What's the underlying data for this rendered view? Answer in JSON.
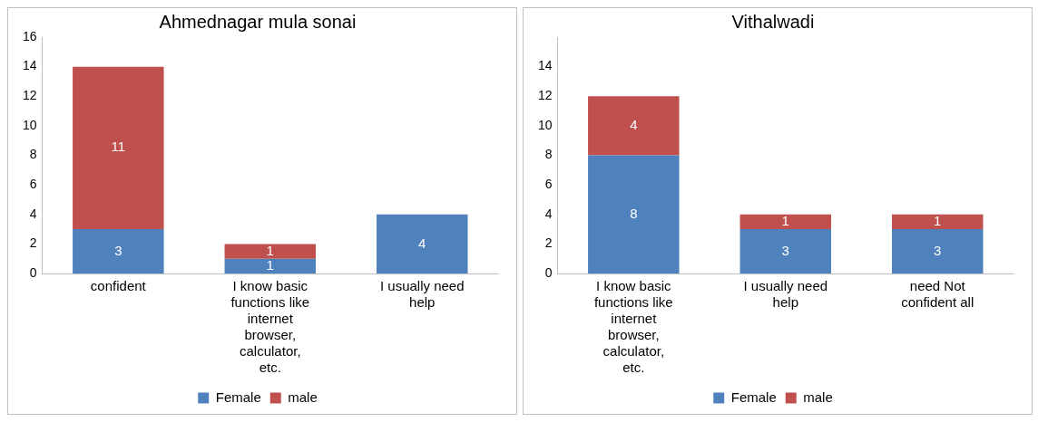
{
  "chart_data": [
    {
      "type": "bar",
      "title": "Ahmednagar mula sonai",
      "categories": [
        "confident",
        "I know basic functions like internet browser, calculator, etc.",
        "I usually need help"
      ],
      "stacked": true,
      "data_labels": true,
      "legend": "bottom",
      "grid": false,
      "ylim": [
        0,
        16
      ],
      "yticks": [
        0,
        2,
        4,
        6,
        8,
        10,
        12,
        14,
        16
      ],
      "series": [
        {
          "name": "Female",
          "color": "#4f81bd",
          "values": [
            3,
            1,
            4
          ]
        },
        {
          "name": "male",
          "color": "#c0504d",
          "values": [
            11,
            1,
            null
          ]
        }
      ]
    },
    {
      "type": "bar",
      "title": "Vithalwadi",
      "categories": [
        "I know basic functions like internet browser, calculator, etc.",
        "I usually need help",
        "need Not confident all"
      ],
      "stacked": true,
      "data_labels": true,
      "legend": "bottom",
      "grid": false,
      "ylim": [
        0,
        16
      ],
      "yticks": [
        0,
        2,
        4,
        6,
        8,
        10,
        12,
        14
      ],
      "series": [
        {
          "name": "Female",
          "color": "#4f81bd",
          "values": [
            8,
            3,
            3
          ]
        },
        {
          "name": "male",
          "color": "#c0504d",
          "values": [
            4,
            1,
            1
          ]
        }
      ]
    }
  ]
}
